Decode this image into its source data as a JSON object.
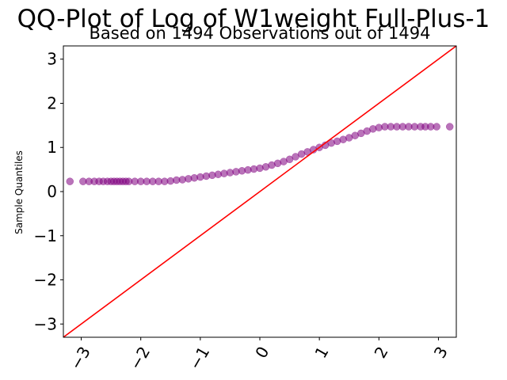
{
  "chart_data": {
    "type": "scatter",
    "title": "QQ-Plot of Log of W1weight Full-Plus-1",
    "subtitle": "Based on 1494 Observations out of 1494",
    "xlabel": "",
    "ylabel": "Sample Quantiles",
    "xlim": [
      -3.3,
      3.3
    ],
    "ylim": [
      -3.3,
      3.3
    ],
    "xticks": [
      -3,
      -2,
      -1,
      0,
      1,
      2,
      3
    ],
    "xtick_labels": [
      "−3",
      "−2",
      "−1",
      "0",
      "1",
      "2",
      "3"
    ],
    "yticks": [
      -3,
      -2,
      -1,
      0,
      1,
      2,
      3
    ],
    "ytick_labels": [
      "−3",
      "−2",
      "−1",
      "0",
      "1",
      "2",
      "3"
    ],
    "grid": false,
    "point_color": "#800080",
    "point_alpha": 0.55,
    "line_color": "#ff0000",
    "reference_line": {
      "x": [
        -3.3,
        3.3
      ],
      "y": [
        -3.3,
        3.3
      ]
    },
    "points": {
      "x": [
        -3.19,
        -2.97,
        -2.87,
        -2.78,
        -2.7,
        -2.63,
        -2.56,
        -2.5,
        -2.45,
        -2.4,
        -2.35,
        -2.3,
        -2.25,
        -2.2,
        -2.1,
        -2.0,
        -1.9,
        -1.8,
        -1.7,
        -1.6,
        -1.5,
        -1.4,
        -1.3,
        -1.2,
        -1.1,
        -1.0,
        -0.9,
        -0.8,
        -0.7,
        -0.6,
        -0.5,
        -0.4,
        -0.3,
        -0.2,
        -0.1,
        0.0,
        0.1,
        0.2,
        0.3,
        0.4,
        0.5,
        0.6,
        0.7,
        0.8,
        0.9,
        1.0,
        1.1,
        1.2,
        1.3,
        1.4,
        1.5,
        1.6,
        1.7,
        1.8,
        1.9,
        2.0,
        2.1,
        2.2,
        2.3,
        2.4,
        2.5,
        2.6,
        2.7,
        2.78,
        2.87,
        2.97,
        3.19
      ],
      "y": [
        0.23,
        0.23,
        0.23,
        0.23,
        0.23,
        0.23,
        0.23,
        0.23,
        0.23,
        0.23,
        0.23,
        0.23,
        0.23,
        0.23,
        0.23,
        0.23,
        0.23,
        0.23,
        0.23,
        0.23,
        0.24,
        0.26,
        0.27,
        0.29,
        0.31,
        0.33,
        0.35,
        0.37,
        0.39,
        0.41,
        0.43,
        0.45,
        0.47,
        0.49,
        0.51,
        0.53,
        0.56,
        0.6,
        0.64,
        0.68,
        0.73,
        0.79,
        0.85,
        0.9,
        0.95,
        1.0,
        1.05,
        1.1,
        1.14,
        1.18,
        1.22,
        1.27,
        1.32,
        1.37,
        1.42,
        1.45,
        1.47,
        1.47,
        1.47,
        1.47,
        1.47,
        1.47,
        1.47,
        1.47,
        1.47,
        1.47,
        1.47
      ]
    }
  }
}
